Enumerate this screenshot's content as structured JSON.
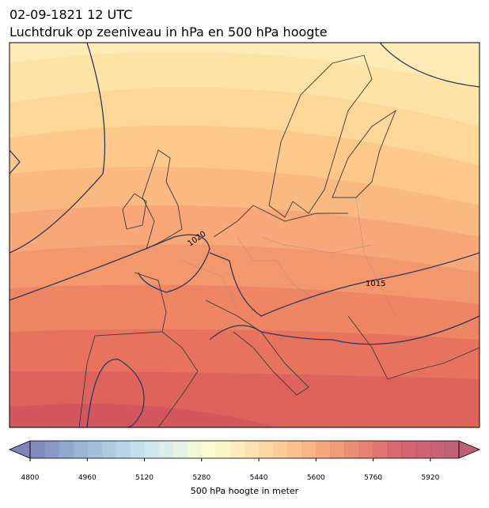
{
  "header": {
    "title": "02-09-1821 12 UTC",
    "subtitle": "Luchtdruk op zeeniveau in hPa en 500 hPa hoogte"
  },
  "map": {
    "contour_labels": [
      "1020",
      "1015"
    ]
  },
  "colorbar": {
    "label": "500 hPa hoogte in meter",
    "lim": [
      4800,
      6000
    ],
    "step": 40,
    "ticks": [
      4800,
      4960,
      5120,
      5280,
      5440,
      5600,
      5760,
      5920
    ],
    "colors": [
      "#6b6fb0",
      "#8fb4d4",
      "#cae5ef",
      "#fdfbc8",
      "#fdc98a",
      "#f08b60",
      "#cf4b58",
      "#b2445e"
    ]
  }
}
